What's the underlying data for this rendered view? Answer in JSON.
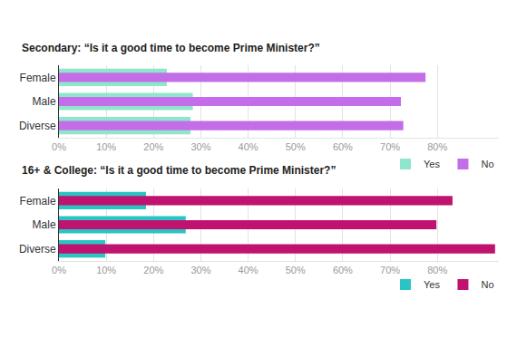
{
  "chart_data": [
    {
      "type": "bar",
      "orientation": "horizontal",
      "title": "Secondary: “Is it a good time to become Prime Minister?”",
      "categories": [
        "Female",
        "Male",
        "Diverse"
      ],
      "series": [
        {
          "name": "Yes",
          "color": "#8ee6cc",
          "values": [
            22.8,
            28.3,
            27.8
          ]
        },
        {
          "name": "No",
          "color": "#c36ee8",
          "values": [
            77.5,
            72.3,
            72.8
          ]
        }
      ],
      "xlim": [
        0,
        93
      ],
      "xticks": [
        {
          "value": 0,
          "label": "0%"
        },
        {
          "value": 10,
          "label": "10%"
        },
        {
          "value": 20,
          "label": "20%"
        },
        {
          "value": 30,
          "label": "30%"
        },
        {
          "value": 40,
          "label": "40%"
        },
        {
          "value": 50,
          "label": "50%"
        },
        {
          "value": 60,
          "label": "60%"
        },
        {
          "value": 70,
          "label": "70%"
        },
        {
          "value": 80,
          "label": "80%"
        }
      ],
      "grid": true,
      "legend": "bottom right"
    },
    {
      "type": "bar",
      "orientation": "horizontal",
      "title": "16+ & College: “Is it a good time to become Prime Minister?”",
      "categories": [
        "Female",
        "Male",
        "Diverse"
      ],
      "series": [
        {
          "name": "Yes",
          "color": "#2ac4c4",
          "values": [
            18.4,
            26.8,
            9.8
          ]
        },
        {
          "name": "No",
          "color": "#c0136f",
          "values": [
            83.2,
            79.8,
            92.2
          ]
        }
      ],
      "xlim": [
        0,
        93
      ],
      "xticks": [
        {
          "value": 0,
          "label": "0%"
        },
        {
          "value": 10,
          "label": "10%"
        },
        {
          "value": 20,
          "label": "20%"
        },
        {
          "value": 30,
          "label": "30%"
        },
        {
          "value": 40,
          "label": "40%"
        },
        {
          "value": 50,
          "label": "50%"
        },
        {
          "value": 60,
          "label": "60%"
        },
        {
          "value": 70,
          "label": "70%"
        },
        {
          "value": 80,
          "label": "80%"
        }
      ],
      "grid": true,
      "legend": "bottom right"
    }
  ]
}
